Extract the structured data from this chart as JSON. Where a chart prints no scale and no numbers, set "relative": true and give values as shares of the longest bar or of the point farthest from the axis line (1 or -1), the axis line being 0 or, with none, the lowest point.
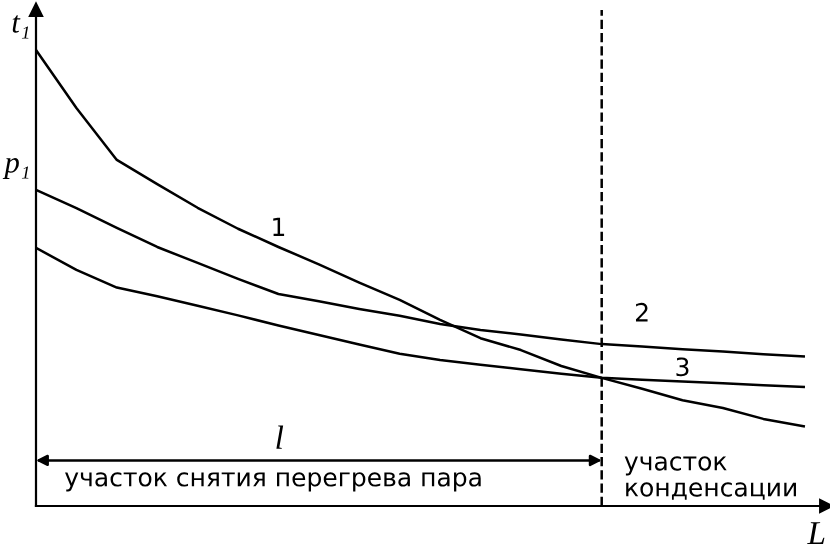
{
  "chart_data": {
    "type": "line",
    "relative": true,
    "xlabel": "L",
    "marker": "none",
    "line_style": "solid",
    "categories": [
      null,
      null,
      null,
      null,
      null,
      null,
      null,
      null,
      null,
      null,
      null,
      null,
      null,
      null,
      null,
      null,
      null,
      null,
      null,
      null
    ],
    "series": [
      {
        "name": "1",
        "color": "#000000",
        "values": [
          1.0,
          0.873,
          0.759,
          0.706,
          0.654,
          0.608,
          0.568,
          0.53,
          0.49,
          0.452,
          0.408,
          0.368,
          0.342,
          0.307,
          0.281,
          0.257,
          0.232,
          0.215,
          0.191,
          0.175
        ]
      },
      {
        "name": "2",
        "color": "#000000",
        "values": [
          0.693,
          0.653,
          0.61,
          0.568,
          0.533,
          0.498,
          0.465,
          0.449,
          0.432,
          0.417,
          0.399,
          0.386,
          0.376,
          0.365,
          0.355,
          0.35,
          0.344,
          0.339,
          0.333,
          0.328
        ]
      },
      {
        "name": "3",
        "color": "#000000",
        "values": [
          0.566,
          0.518,
          0.479,
          0.46,
          0.439,
          0.418,
          0.396,
          0.375,
          0.354,
          0.334,
          0.32,
          0.31,
          0.3,
          0.29,
          0.281,
          0.277,
          0.273,
          0.269,
          0.265,
          0.261
        ]
      }
    ],
    "annotations": [
      "t₁",
      "p₁",
      "l",
      "участок снятия перегрева пара",
      "участок\nконденсации"
    ]
  }
}
